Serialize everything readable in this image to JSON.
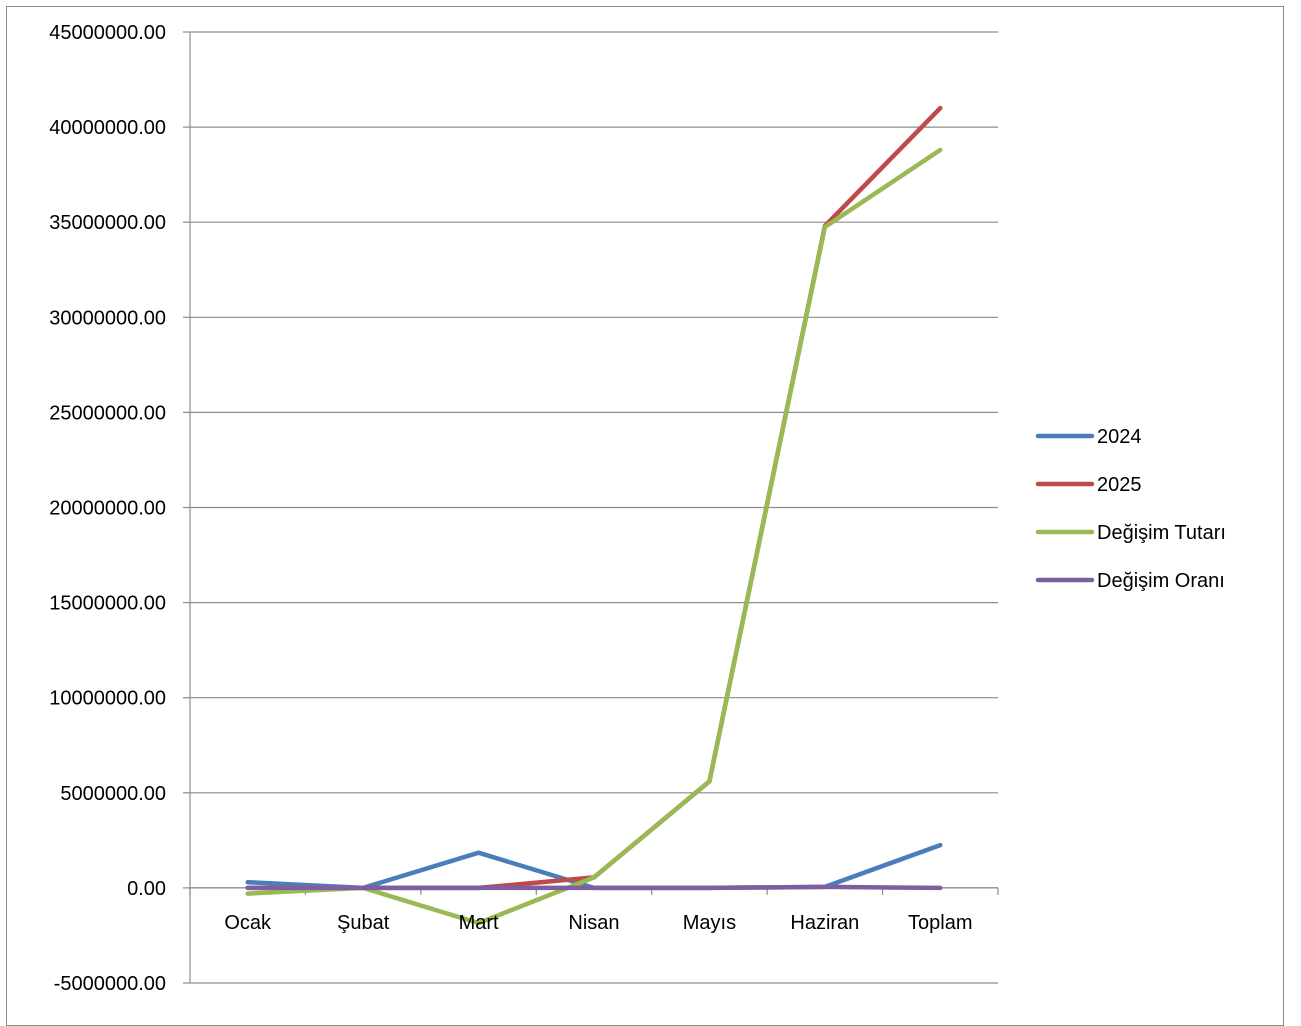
{
  "chart_data": {
    "type": "line",
    "categories": [
      "Ocak",
      "Şubat",
      "Mart",
      "Nisan",
      "Mayıs",
      "Haziran",
      "Toplam"
    ],
    "y_ticks": [
      "45000000.00",
      "40000000.00",
      "35000000.00",
      "30000000.00",
      "25000000.00",
      "20000000.00",
      "15000000.00",
      "10000000.00",
      "5000000.00",
      "0.00",
      "-5000000.00"
    ],
    "ylim": [
      -5000000,
      45000000
    ],
    "grid": true,
    "legend_position": "right",
    "series": [
      {
        "name": "2024",
        "color": "#4a7ebb",
        "values": [
          300000,
          0,
          1850000,
          0,
          0,
          50000,
          2250000
        ]
      },
      {
        "name": "2025",
        "color": "#be4b48",
        "values": [
          0,
          0,
          0,
          550000,
          5600000,
          34800000,
          41000000
        ]
      },
      {
        "name": "Değişim Tutarı",
        "color": "#98b954",
        "values": [
          -300000,
          0,
          -1850000,
          550000,
          5600000,
          34750000,
          38800000
        ]
      },
      {
        "name": "Değişim Oranı",
        "color": "#7d5fa0",
        "values": [
          0,
          0,
          0,
          0,
          0,
          50000,
          0
        ]
      }
    ]
  }
}
